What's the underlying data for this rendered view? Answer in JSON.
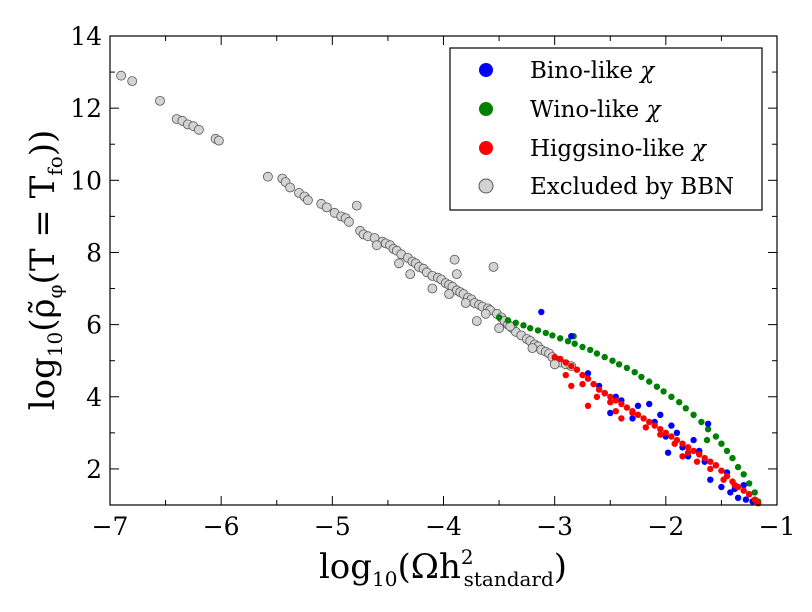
{
  "chart_data": {
    "type": "scatter",
    "title": "",
    "xlabel": {
      "main": "log",
      "sub1": "10",
      "mid": "(Ωh",
      "sup": "2",
      "sub2": "standard",
      "close": ")"
    },
    "ylabel": {
      "main": "log",
      "sub1": "10",
      "mid": "(ρ̃",
      "sub2": "φ",
      "mid2": "(T = T",
      "sub3": "fo",
      "close": "))"
    },
    "xlim": [
      -7,
      -1
    ],
    "ylim": [
      1,
      14
    ],
    "xticks": [
      -7,
      -6,
      -5,
      -4,
      -3,
      -2,
      -1
    ],
    "yticks": [
      2,
      4,
      6,
      8,
      10,
      12,
      14
    ],
    "xtick_labels": [
      "−7",
      "−6",
      "−5",
      "−4",
      "−3",
      "−2",
      "−1"
    ],
    "ytick_labels": [
      "2",
      "4",
      "6",
      "8",
      "10",
      "12",
      "14"
    ],
    "legend_position": "top-right",
    "series": [
      {
        "name": "Bino-like χ",
        "label_text": "Bino-like",
        "color": "#0000ff",
        "marker": "dot",
        "points": [
          [
            -3.12,
            6.35
          ],
          [
            -2.85,
            5.68
          ],
          [
            -2.7,
            4.65
          ],
          [
            -2.5,
            3.55
          ],
          [
            -2.45,
            4.0
          ],
          [
            -2.3,
            3.4
          ],
          [
            -2.25,
            3.75
          ],
          [
            -2.15,
            3.8
          ],
          [
            -2.1,
            3.3
          ],
          [
            -2.05,
            3.5
          ],
          [
            -1.98,
            2.45
          ],
          [
            -1.95,
            3.2
          ],
          [
            -1.85,
            2.6
          ],
          [
            -1.8,
            2.35
          ],
          [
            -1.75,
            2.8
          ],
          [
            -1.7,
            2.5
          ],
          [
            -1.65,
            2.2
          ],
          [
            -1.62,
            3.25
          ],
          [
            -1.6,
            1.7
          ],
          [
            -1.55,
            2.1
          ],
          [
            -1.5,
            1.5
          ],
          [
            -1.45,
            1.9
          ],
          [
            -1.42,
            1.35
          ],
          [
            -1.38,
            1.45
          ],
          [
            -1.35,
            1.2
          ],
          [
            -1.3,
            1.55
          ],
          [
            -1.28,
            1.15
          ],
          [
            -1.25,
            1.3
          ],
          [
            -1.22,
            1.1
          ],
          [
            -2.6,
            4.3
          ],
          [
            -2.4,
            3.9
          ],
          [
            -2.0,
            2.9
          ],
          [
            -1.9,
            3.0
          ],
          [
            -2.55,
            4.1
          ]
        ]
      },
      {
        "name": "Wino-like χ",
        "label_text": "Wino-like",
        "color": "#008000",
        "marker": "dot",
        "points": [
          [
            -3.5,
            6.2
          ],
          [
            -3.42,
            6.12
          ],
          [
            -3.35,
            6.05
          ],
          [
            -3.28,
            5.98
          ],
          [
            -3.22,
            5.9
          ],
          [
            -3.15,
            5.84
          ],
          [
            -3.08,
            5.77
          ],
          [
            -3.02,
            5.7
          ],
          [
            -2.95,
            5.62
          ],
          [
            -2.88,
            5.54
          ],
          [
            -2.82,
            5.47
          ],
          [
            -2.75,
            5.38
          ],
          [
            -2.68,
            5.3
          ],
          [
            -2.62,
            5.2
          ],
          [
            -2.55,
            5.1
          ],
          [
            -2.48,
            5.0
          ],
          [
            -2.42,
            4.9
          ],
          [
            -2.35,
            4.8
          ],
          [
            -2.28,
            4.68
          ],
          [
            -2.22,
            4.55
          ],
          [
            -2.15,
            4.42
          ],
          [
            -2.08,
            4.28
          ],
          [
            -2.02,
            4.15
          ],
          [
            -1.95,
            4.0
          ],
          [
            -1.88,
            3.85
          ],
          [
            -1.82,
            3.68
          ],
          [
            -1.75,
            3.5
          ],
          [
            -1.68,
            3.3
          ],
          [
            -1.62,
            3.1
          ],
          [
            -1.55,
            2.9
          ],
          [
            -1.5,
            2.7
          ],
          [
            -1.45,
            2.5
          ],
          [
            -1.4,
            2.3
          ],
          [
            -1.35,
            2.05
          ],
          [
            -1.3,
            1.85
          ],
          [
            -1.25,
            1.6
          ],
          [
            -1.2,
            1.35
          ],
          [
            -1.17,
            1.1
          ],
          [
            -2.83,
            5.68
          ],
          [
            -1.63,
            2.8
          ],
          [
            -1.7,
            2.45
          ]
        ]
      },
      {
        "name": "Higgsino-like χ",
        "label_text": "Higgsino-like",
        "color": "#ff0000",
        "marker": "dot",
        "points": [
          [
            -3.0,
            5.1
          ],
          [
            -2.95,
            5.05
          ],
          [
            -2.9,
            4.95
          ],
          [
            -2.85,
            4.85
          ],
          [
            -2.8,
            4.75
          ],
          [
            -2.75,
            4.6
          ],
          [
            -2.7,
            4.5
          ],
          [
            -2.65,
            4.35
          ],
          [
            -2.6,
            4.2
          ],
          [
            -2.55,
            4.1
          ],
          [
            -2.5,
            4.0
          ],
          [
            -2.45,
            3.9
          ],
          [
            -2.4,
            3.8
          ],
          [
            -2.35,
            3.7
          ],
          [
            -2.3,
            3.6
          ],
          [
            -2.25,
            3.5
          ],
          [
            -2.2,
            3.4
          ],
          [
            -2.15,
            3.3
          ],
          [
            -2.1,
            3.2
          ],
          [
            -2.05,
            3.1
          ],
          [
            -2.0,
            3.0
          ],
          [
            -1.95,
            2.9
          ],
          [
            -1.9,
            2.8
          ],
          [
            -1.85,
            2.7
          ],
          [
            -1.8,
            2.6
          ],
          [
            -1.75,
            2.5
          ],
          [
            -1.7,
            2.4
          ],
          [
            -1.65,
            2.3
          ],
          [
            -1.6,
            2.2
          ],
          [
            -1.55,
            2.1
          ],
          [
            -1.5,
            1.95
          ],
          [
            -1.45,
            1.8
          ],
          [
            -1.4,
            1.65
          ],
          [
            -1.35,
            1.5
          ],
          [
            -1.3,
            1.4
          ],
          [
            -1.25,
            1.3
          ],
          [
            -1.2,
            1.15
          ],
          [
            -1.17,
            1.05
          ],
          [
            -2.9,
            4.6
          ],
          [
            -2.75,
            4.35
          ],
          [
            -2.62,
            4.0
          ],
          [
            -2.5,
            3.85
          ],
          [
            -2.45,
            3.6
          ],
          [
            -2.3,
            3.55
          ],
          [
            -2.18,
            3.15
          ],
          [
            -2.05,
            2.95
          ],
          [
            -1.92,
            2.7
          ],
          [
            -1.8,
            2.45
          ],
          [
            -1.72,
            2.2
          ],
          [
            -1.6,
            2.0
          ],
          [
            -1.48,
            1.7
          ],
          [
            -1.38,
            1.55
          ],
          [
            -2.4,
            3.4
          ],
          [
            -2.7,
            3.75
          ],
          [
            -2.85,
            4.3
          ],
          [
            -1.85,
            2.35
          ]
        ]
      },
      {
        "name": "Excluded by BBN",
        "label_text": "Excluded by BBN",
        "color": "#d3d3d3",
        "marker": "circle",
        "points": [
          [
            -6.9,
            12.9
          ],
          [
            -6.8,
            12.75
          ],
          [
            -6.55,
            12.2
          ],
          [
            -6.4,
            11.7
          ],
          [
            -6.35,
            11.65
          ],
          [
            -6.3,
            11.55
          ],
          [
            -6.25,
            11.5
          ],
          [
            -6.2,
            11.4
          ],
          [
            -6.05,
            11.15
          ],
          [
            -6.02,
            11.1
          ],
          [
            -5.58,
            10.1
          ],
          [
            -5.45,
            10.05
          ],
          [
            -5.42,
            9.95
          ],
          [
            -5.38,
            9.8
          ],
          [
            -5.3,
            9.65
          ],
          [
            -5.25,
            9.55
          ],
          [
            -5.22,
            9.45
          ],
          [
            -5.1,
            9.35
          ],
          [
            -5.05,
            9.25
          ],
          [
            -4.98,
            9.1
          ],
          [
            -4.92,
            9.0
          ],
          [
            -4.88,
            8.95
          ],
          [
            -4.85,
            8.85
          ],
          [
            -4.78,
            9.3
          ],
          [
            -4.75,
            8.6
          ],
          [
            -4.72,
            8.5
          ],
          [
            -4.68,
            8.45
          ],
          [
            -4.62,
            8.4
          ],
          [
            -4.55,
            8.3
          ],
          [
            -4.52,
            8.25
          ],
          [
            -4.48,
            8.2
          ],
          [
            -4.45,
            8.1
          ],
          [
            -4.42,
            8.05
          ],
          [
            -4.38,
            7.95
          ],
          [
            -4.32,
            7.85
          ],
          [
            -4.28,
            7.75
          ],
          [
            -4.25,
            7.7
          ],
          [
            -4.22,
            7.6
          ],
          [
            -4.18,
            7.55
          ],
          [
            -4.15,
            7.45
          ],
          [
            -4.1,
            7.35
          ],
          [
            -4.05,
            7.3
          ],
          [
            -4.02,
            7.25
          ],
          [
            -3.98,
            7.15
          ],
          [
            -3.95,
            7.1
          ],
          [
            -3.92,
            7.05
          ],
          [
            -3.9,
            7.8
          ],
          [
            -3.88,
            6.95
          ],
          [
            -3.85,
            6.9
          ],
          [
            -3.82,
            6.85
          ],
          [
            -3.78,
            6.75
          ],
          [
            -3.75,
            6.7
          ],
          [
            -3.72,
            6.6
          ],
          [
            -3.68,
            6.55
          ],
          [
            -3.65,
            6.5
          ],
          [
            -3.6,
            6.45
          ],
          [
            -3.58,
            6.4
          ],
          [
            -3.55,
            7.6
          ],
          [
            -3.52,
            6.3
          ],
          [
            -3.48,
            6.2
          ],
          [
            -3.45,
            6.1
          ],
          [
            -3.42,
            6.0
          ],
          [
            -3.38,
            5.9
          ],
          [
            -3.35,
            5.8
          ],
          [
            -3.3,
            5.7
          ],
          [
            -3.25,
            5.6
          ],
          [
            -3.22,
            5.55
          ],
          [
            -3.18,
            5.45
          ],
          [
            -3.15,
            5.4
          ],
          [
            -3.12,
            5.3
          ],
          [
            -3.08,
            5.25
          ],
          [
            -3.05,
            5.2
          ],
          [
            -3.02,
            5.1
          ],
          [
            -2.98,
            5.0
          ],
          [
            -2.95,
            4.95
          ],
          [
            -2.9,
            4.9
          ],
          [
            -2.85,
            4.85
          ],
          [
            -4.3,
            7.4
          ],
          [
            -4.1,
            7.0
          ],
          [
            -3.95,
            6.85
          ],
          [
            -3.8,
            6.6
          ],
          [
            -3.62,
            6.3
          ],
          [
            -3.4,
            5.95
          ],
          [
            -3.2,
            5.35
          ],
          [
            -3.0,
            4.9
          ],
          [
            -4.6,
            8.2
          ],
          [
            -4.4,
            7.7
          ],
          [
            -3.88,
            7.4
          ],
          [
            -3.7,
            6.1
          ],
          [
            -3.5,
            5.9
          ]
        ]
      }
    ]
  }
}
